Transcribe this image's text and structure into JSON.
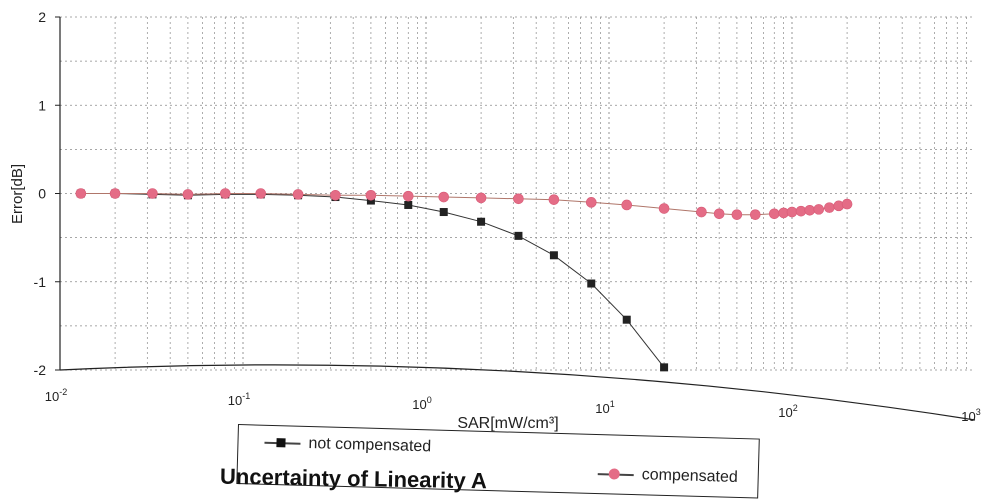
{
  "chart_data": {
    "type": "line",
    "title": "",
    "xlabel": "SAR[mW/cm³]",
    "ylabel": "Error[dB]",
    "x_scale": "log",
    "xlim": [
      0.01,
      1000
    ],
    "ylim": [
      -2,
      2
    ],
    "x_ticks": [
      {
        "value": 0.01,
        "base": "10",
        "exp": "-2"
      },
      {
        "value": 0.1,
        "base": "10",
        "exp": "-1"
      },
      {
        "value": 1,
        "base": "10",
        "exp": "0"
      },
      {
        "value": 10,
        "base": "10",
        "exp": "1"
      },
      {
        "value": 100,
        "base": "10",
        "exp": "2"
      },
      {
        "value": 1000,
        "base": "10",
        "exp": "3"
      }
    ],
    "y_ticks": [
      "-2",
      "-1",
      "0",
      "1",
      "2"
    ],
    "grid": true,
    "legend_position": "bottom",
    "series": [
      {
        "name": "not compensated",
        "color": "#222222",
        "marker": "square",
        "x": [
          0.013,
          0.02,
          0.032,
          0.05,
          0.08,
          0.125,
          0.2,
          0.32,
          0.5,
          0.8,
          1.25,
          2,
          3.2,
          5,
          8,
          12.5,
          20
        ],
        "y": [
          0.0,
          0.0,
          -0.01,
          -0.02,
          -0.01,
          -0.01,
          -0.02,
          -0.04,
          -0.08,
          -0.13,
          -0.21,
          -0.32,
          -0.48,
          -0.7,
          -1.02,
          -1.43,
          -1.97
        ]
      },
      {
        "name": "compensated",
        "color": "#e46c86",
        "marker": "circle",
        "x": [
          0.013,
          0.02,
          0.032,
          0.05,
          0.08,
          0.125,
          0.2,
          0.32,
          0.5,
          0.8,
          1.25,
          2,
          3.2,
          5,
          8,
          12.5,
          20,
          32,
          40,
          50,
          63,
          80,
          90,
          100,
          112,
          125,
          140,
          160,
          180,
          200
        ],
        "y": [
          0.0,
          0.0,
          0.0,
          -0.01,
          0.0,
          0.0,
          -0.01,
          -0.02,
          -0.02,
          -0.03,
          -0.04,
          -0.05,
          -0.06,
          -0.07,
          -0.1,
          -0.13,
          -0.17,
          -0.21,
          -0.23,
          -0.24,
          -0.24,
          -0.23,
          -0.22,
          -0.21,
          -0.2,
          -0.19,
          -0.18,
          -0.16,
          -0.14,
          -0.12
        ]
      }
    ]
  },
  "legend": {
    "not_compensated": "not compensated",
    "compensated": "compensated"
  },
  "caption": "Uncertainty of Linearity A"
}
